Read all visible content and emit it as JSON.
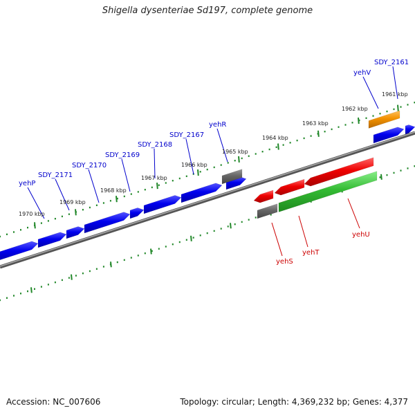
{
  "title": "Shigella dysenteriae Sd197, complete genome",
  "footer": {
    "accession": "Accession: NC_007606",
    "summary": "Topology: circular; Length: 4,369,232 bp; Genes: 4,377"
  },
  "scale_labels": [
    "1961 kbp",
    "1962 kbp",
    "1963 kbp",
    "1964 kbp",
    "1965 kbp",
    "1966 kbp",
    "1967 kbp",
    "1968 kbp",
    "1969 kbp",
    "1970 kbp"
  ],
  "gene_labels": {
    "forward": [
      "yehP",
      "SDY_2171",
      "SDY_2170",
      "SDY_2169",
      "SDY_2168",
      "SDY_2167",
      "yehR",
      "yehV",
      "SDY_2161"
    ],
    "reverse": [
      "yehS",
      "yehT",
      "yehU"
    ]
  },
  "colors": {
    "cds_forward": "#0000ee",
    "cds_reverse": "#ee0000",
    "orange": "#f39200",
    "green": "#33bb33",
    "gray": "#666666",
    "backbone": "#888888",
    "ticks": "#22882a",
    "label_blue": "#0000cc",
    "label_red": "#cc0000"
  }
}
